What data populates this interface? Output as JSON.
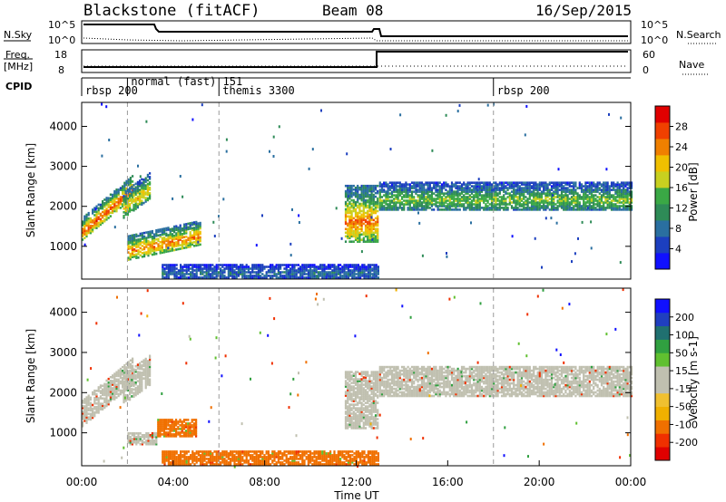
{
  "header": {
    "station": "Blackstone (fitACF)",
    "beam": "Beam 08",
    "date": "16/Sep/2015"
  },
  "strip_labels": {
    "nsky": "N.Sky",
    "nsky_top": "10^5",
    "nsky_bottom": "10^0",
    "nsearch": "N.Search",
    "nsearch_top": "10^5",
    "nsearch_bottom": "10^0",
    "freq": "Freq.",
    "freq_unit": "[MHz]",
    "freq_top": "18",
    "freq_bottom": "8",
    "nave": "Nave",
    "nave_top": "60",
    "nave_bottom": "0",
    "cpid": "CPID"
  },
  "cpid_segments": [
    {
      "label": "rbsp 200",
      "start_h": 0
    },
    {
      "label": "normal (fast) 151",
      "start_h": 2
    },
    {
      "label": "themis 3300",
      "start_h": 6
    },
    {
      "label": "rbsp 200",
      "start_h": 18
    }
  ],
  "colors": {
    "power": [
      "#1010ff",
      "#1c3fbf",
      "#2a6fa0",
      "#2e8b57",
      "#3aa845",
      "#c8d020",
      "#f0c000",
      "#f08000",
      "#f04000",
      "#e00000"
    ],
    "velocity": [
      "#e00000",
      "#f03000",
      "#f07000",
      "#f0b000",
      "#f0c030",
      "#c0c0b0",
      "#c0c0b0",
      "#60c030",
      "#30a040",
      "#207070",
      "#203fbf",
      "#1010ff"
    ],
    "gray_dash": "#9a9a9a"
  },
  "chart_data": [
    {
      "type": "heatmap",
      "name": "power",
      "ylabel": "Slant Range [km]",
      "colorbar_label": "Power [dB]",
      "colorbar_ticks": [
        "4",
        "8",
        "12",
        "16",
        "20",
        "24",
        "28"
      ],
      "yticks": [
        "1000",
        "2000",
        "3000",
        "4000"
      ],
      "ylim": [
        180,
        4600
      ],
      "xlim": [
        0,
        24
      ],
      "vlines_h": [
        2,
        6,
        18
      ],
      "regions": [
        {
          "t0": 0.0,
          "t1": 2.2,
          "r0": 1150,
          "r1": 1700,
          "slope": 480,
          "power": 22
        },
        {
          "t0": 1.8,
          "t1": 3.0,
          "r0": 1700,
          "r1": 2350,
          "slope": 420,
          "power": 16
        },
        {
          "t0": 2.0,
          "t1": 5.2,
          "r0": 650,
          "r1": 1250,
          "slope": 120,
          "power": 20
        },
        {
          "t0": 11.5,
          "t1": 12.9,
          "r0": 1100,
          "r1": 2500,
          "slope": 0,
          "power": 20
        },
        {
          "t0": 13.0,
          "t1": 24.0,
          "r0": 1900,
          "r1": 2600,
          "slope": 0,
          "power": 12
        },
        {
          "t0": 3.5,
          "t1": 13.0,
          "r0": 200,
          "r1": 520,
          "slope": 0,
          "power": 6
        }
      ]
    },
    {
      "type": "heatmap",
      "name": "velocity",
      "xlabel": "Time UT",
      "ylabel": "Slant Range [km]",
      "colorbar_label": "Velocity [m s-1]",
      "colorbar_ticks": [
        "200",
        "100",
        "50",
        "15",
        "-15",
        "-50",
        "-100",
        "-200"
      ],
      "xticks": [
        "00:00",
        "04:00",
        "08:00",
        "12:00",
        "16:00",
        "20:00",
        "00:00"
      ],
      "yticks": [
        "1000",
        "2000",
        "3000",
        "4000"
      ],
      "ylim": [
        180,
        4600
      ],
      "xlim": [
        0,
        24
      ],
      "vlines_h": [
        2,
        6,
        18
      ],
      "regions": [
        {
          "t0": 0.0,
          "t1": 2.2,
          "r0": 1150,
          "r1": 1800,
          "slope": 480,
          "velocity": 0
        },
        {
          "t0": 1.8,
          "t1": 3.0,
          "r0": 1700,
          "r1": 2450,
          "slope": 420,
          "velocity": 0
        },
        {
          "t0": 2.0,
          "t1": 3.3,
          "r0": 700,
          "r1": 1000,
          "slope": 0,
          "velocity": 0
        },
        {
          "t0": 3.3,
          "t1": 5.0,
          "r0": 900,
          "r1": 1350,
          "slope": 0,
          "velocity": -40
        },
        {
          "t0": 11.5,
          "t1": 12.9,
          "r0": 1100,
          "r1": 2500,
          "slope": 0,
          "velocity": 0
        },
        {
          "t0": 13.0,
          "t1": 24.0,
          "r0": 1900,
          "r1": 2650,
          "slope": 0,
          "velocity": 0
        },
        {
          "t0": 3.5,
          "t1": 13.0,
          "r0": 200,
          "r1": 520,
          "slope": 0,
          "velocity": -40
        }
      ]
    }
  ]
}
